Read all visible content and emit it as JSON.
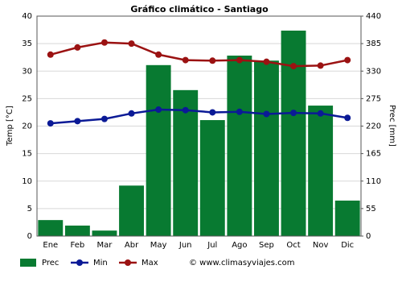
{
  "chart_data": {
    "type": "combo",
    "title": "Gráfico climático - Santiago",
    "categories": [
      "Ene",
      "Feb",
      "Mar",
      "Abr",
      "May",
      "Jun",
      "Jul",
      "Ago",
      "Sep",
      "Oct",
      "Nov",
      "Dic"
    ],
    "series": [
      {
        "name": "Prec",
        "type": "bar",
        "axis": "y2",
        "color": "#087a31",
        "values": [
          32,
          21,
          11,
          101,
          342,
          292,
          232,
          361,
          351,
          411,
          261,
          71
        ]
      },
      {
        "name": "Min",
        "type": "line",
        "color": "#0b1a96",
        "values": [
          20.5,
          20.9,
          21.3,
          22.3,
          23,
          22.9,
          22.5,
          22.6,
          22.2,
          22.4,
          22.3,
          21.5
        ]
      },
      {
        "name": "Max",
        "type": "line",
        "color": "#9b1212",
        "values": [
          33,
          34.3,
          35.2,
          35,
          33,
          32,
          31.9,
          32,
          31.7,
          30.9,
          31,
          32
        ]
      }
    ],
    "ylabel": "Temp [°C]",
    "y2label": "Prec [mm]",
    "ylim": [
      0,
      40
    ],
    "yticks": [
      0,
      5,
      10,
      15,
      20,
      25,
      30,
      35,
      40
    ],
    "y2lim": [
      0,
      440
    ],
    "y2ticks": [
      0,
      55,
      110,
      165,
      220,
      275,
      330,
      385,
      440
    ],
    "grid": true,
    "legend": "bottom",
    "source": "© www.climasyviajes.com"
  }
}
